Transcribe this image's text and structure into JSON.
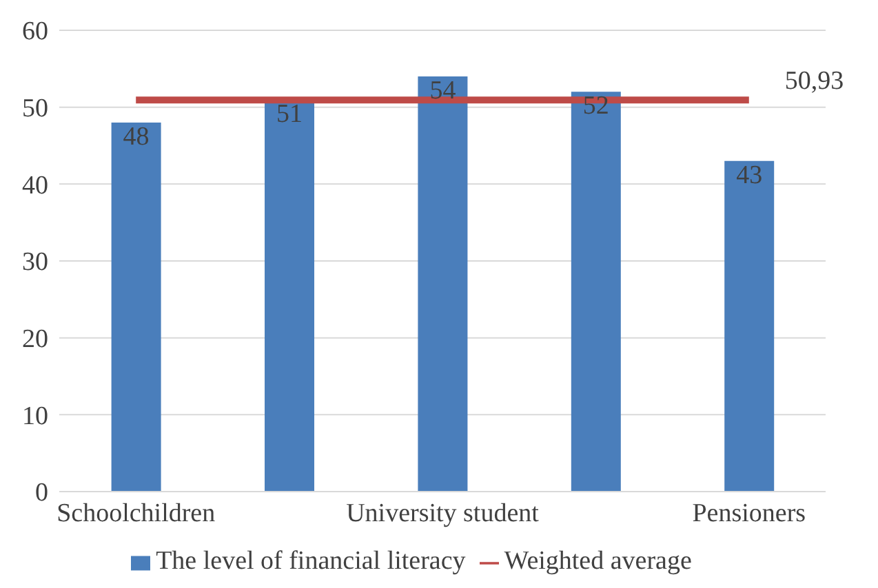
{
  "chart_data": {
    "type": "bar",
    "categories": [
      "Schoolchildren",
      null,
      "University student",
      null,
      "Pensioners"
    ],
    "series": [
      {
        "name": "The level of financial literacy",
        "color": "#4a7ebb",
        "values": [
          48,
          51,
          54,
          52,
          43
        ],
        "value_labels": [
          "48",
          "51",
          "54",
          "52",
          "43"
        ]
      },
      {
        "name": "Weighted average",
        "type": "line",
        "color": "#be4b48",
        "values": [
          50.93,
          50.93,
          50.93,
          50.93,
          50.93
        ],
        "value_labels": [
          null,
          null,
          null,
          null,
          "50,93"
        ]
      }
    ],
    "ylim": [
      0,
      60
    ],
    "yticks": [
      0,
      10,
      20,
      30,
      40,
      50,
      60
    ],
    "grid": "y",
    "legend": "bottom",
    "marker": "none",
    "line_style": "solid"
  }
}
